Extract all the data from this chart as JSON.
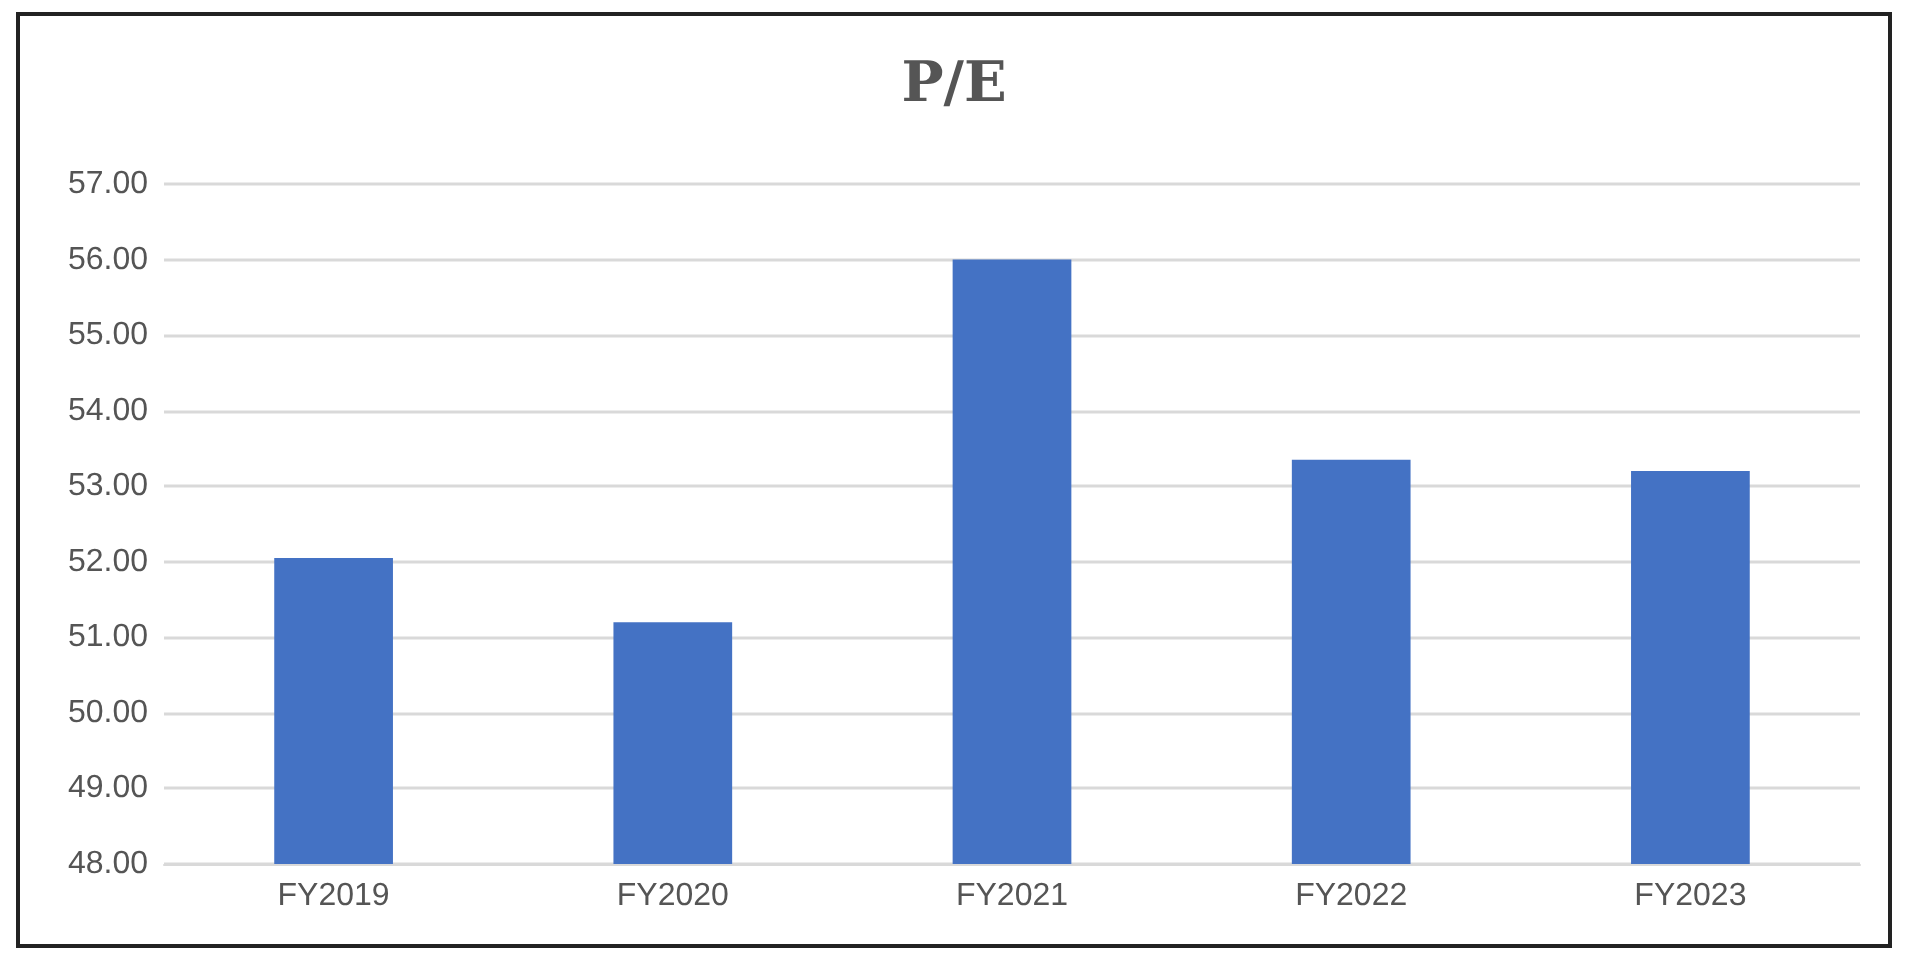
{
  "chart_data": {
    "type": "bar",
    "title": "P/E",
    "categories": [
      "FY2019",
      "FY2020",
      "FY2021",
      "FY2022",
      "FY2023"
    ],
    "values": [
      52.05,
      51.2,
      56.0,
      53.35,
      53.2
    ],
    "color": "#4472c4",
    "ylim": [
      48,
      57
    ],
    "yticks": [
      {
        "value": 48,
        "label": "48.00"
      },
      {
        "value": 49,
        "label": "49.00"
      },
      {
        "value": 50,
        "label": "50.00"
      },
      {
        "value": 51,
        "label": "51.00"
      },
      {
        "value": 52,
        "label": "52.00"
      },
      {
        "value": 53,
        "label": "53.00"
      },
      {
        "value": 54,
        "label": "54.00"
      },
      {
        "value": 55,
        "label": "55.00"
      },
      {
        "value": 56,
        "label": "56.00"
      },
      {
        "value": 57,
        "label": "57.00"
      }
    ],
    "grid": "y"
  }
}
